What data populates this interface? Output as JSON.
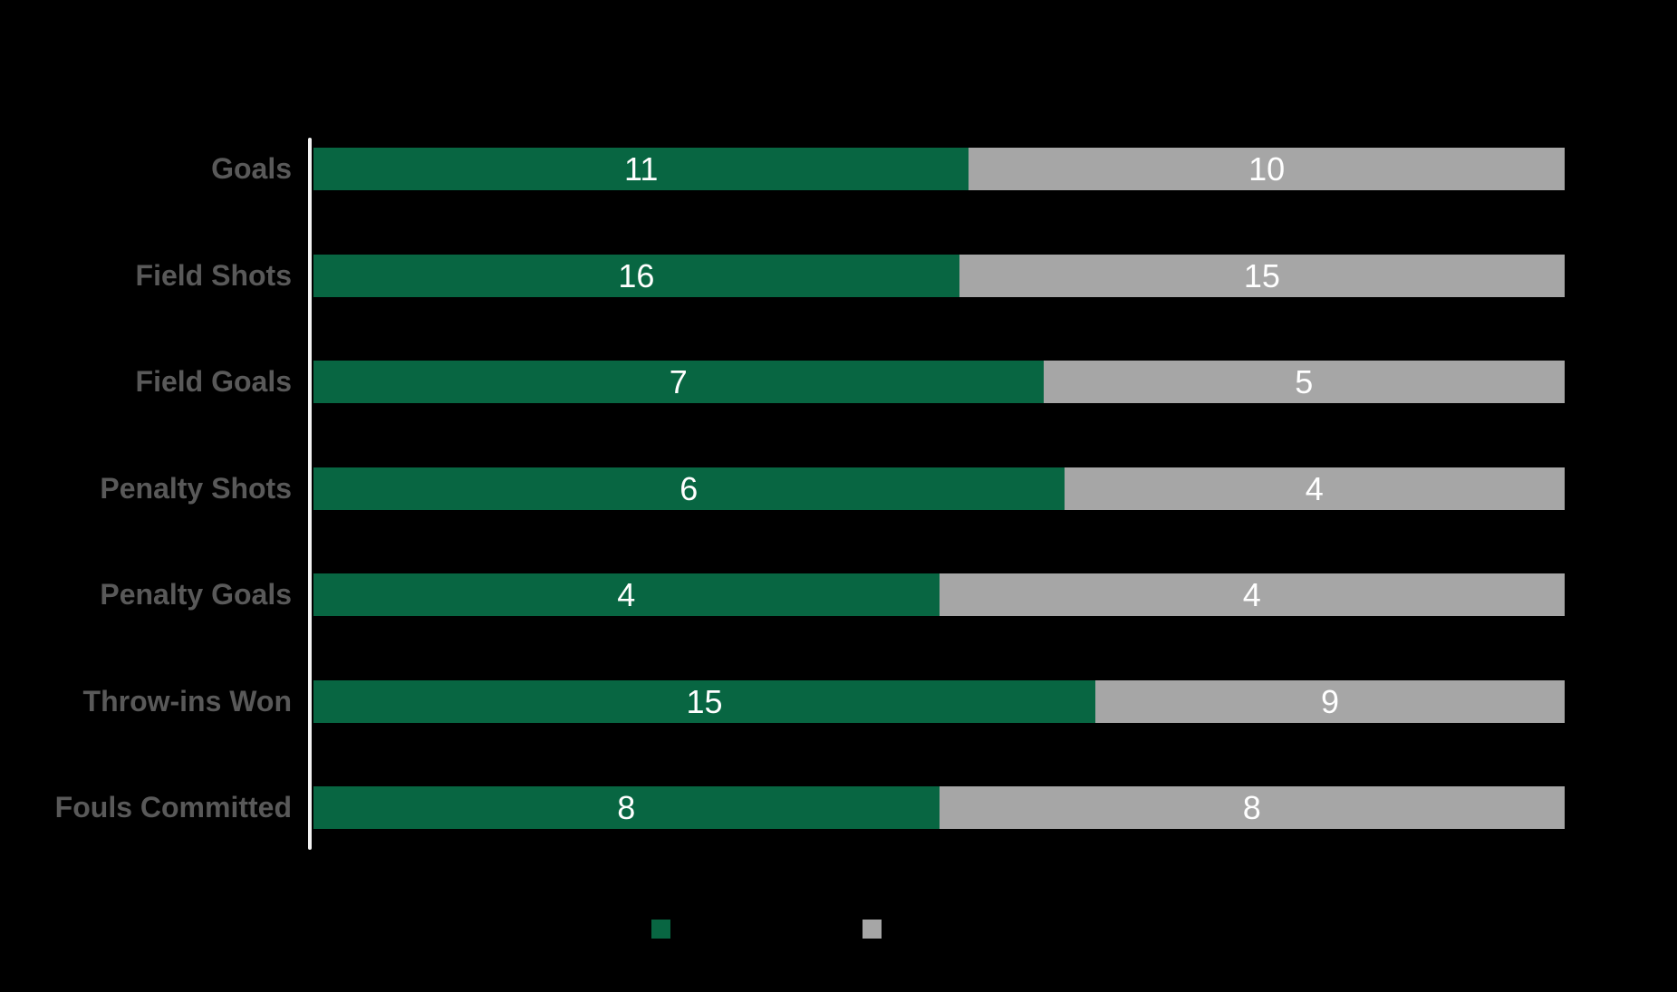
{
  "chart_data": {
    "type": "bar",
    "orientation": "horizontal",
    "stacked": true,
    "normalized_rows": true,
    "title": "",
    "xlabel": "",
    "ylabel": "",
    "categories": [
      "Goals",
      "Field Shots",
      "Field Goals",
      "Penalty Shots",
      "Penalty Goals",
      "Throw-ins Won",
      "Fouls Committed"
    ],
    "series": [
      {
        "name": "green-series",
        "color": "#086642",
        "values": [
          11,
          16,
          7,
          6,
          4,
          15,
          8
        ]
      },
      {
        "name": "gray-series",
        "color": "#A6A6A6",
        "values": [
          10,
          15,
          5,
          4,
          4,
          9,
          8
        ]
      }
    ],
    "value_labels_shown": true,
    "value_label_color": "#FFFFFF",
    "category_label_color": "#595959",
    "axis_line_color": "#F2F2F2",
    "background_color": "#000000",
    "legend_position": "bottom",
    "grid": false
  },
  "legend": {
    "swatches": [
      {
        "name": "green-swatch",
        "color": "#086642"
      },
      {
        "name": "gray-swatch",
        "color": "#A6A6A6"
      }
    ]
  }
}
